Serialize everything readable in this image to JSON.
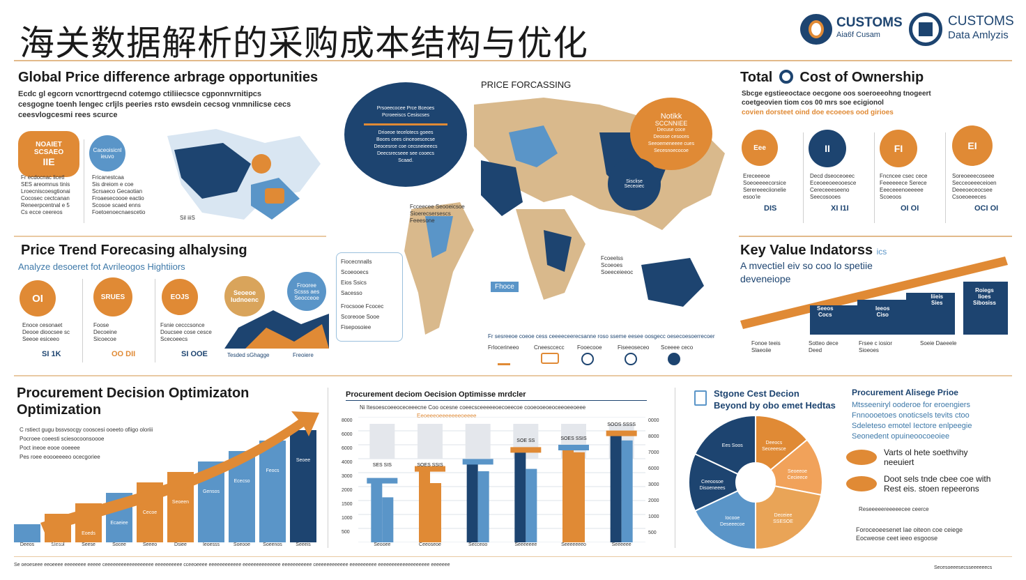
{
  "header": {
    "title": "海关数据解析的采购成本结构与优化",
    "logo1": {
      "line1": "CUSTOMS",
      "line2": "Aia6f Cusam"
    },
    "logo2": {
      "line1": "CUSTOMS",
      "line2": "Data Amlyzis"
    }
  },
  "global": {
    "title": "Global Price difference arbrage opportunities",
    "lines": [
      "Ecdc gl egcorn vcnorttrgecnd cotemgo ctiliiecsce cgponnvrnitipcs",
      "cesgogne toenh lengec crljls peeries rsto ewsdein cecsog vnmnilicse cecs",
      "ceesvlogcesmi rees scurce"
    ],
    "card1": {
      "line1": "NOAIET",
      "line2": "SCSAEO",
      "line3": "IIE"
    },
    "card2": {
      "line1": "Caceoisicnl",
      "line2": "ieuvo"
    },
    "col1": [
      "Fr ecdocnac licetl",
      "SES areomnus tinis",
      "Lroecniscoesgtionai",
      "Cocosec cectcanan",
      "Reneerpcentnal e 5",
      "Cs ecce ceereos"
    ],
    "col2": [
      "Fricanestcaa",
      "Sis dreiom e coe",
      "Scrsaeco Gecaotian",
      "Froaesecoooe eactio",
      "Scosoe scaed enns",
      "Foetoenoecnaescetio"
    ],
    "map_label": "Sil iiiS"
  },
  "trend": {
    "title": "Price Trend  Forecasing alhalysing",
    "subtitle": "Analyze desoeret fot Avrileogos Hightiiors",
    "items": [
      {
        "icon": "OI",
        "l1": "Enoce cesonaet",
        "l2": "Deooe dioocsee sc",
        "l3": "Seeoe esiceeo",
        "value": "SI 1K"
      },
      {
        "icon": "SRUES",
        "l1": "Foose",
        "l2": "Decoeine",
        "l3": "Sicoecoe",
        "value": "OO DII"
      },
      {
        "icon": "EOJS",
        "l1": "Fsnie cecccsonce",
        "l2": "Doucsee cose cesce",
        "l3": "Scecoeecs",
        "value": "SI OOE"
      }
    ],
    "tag1": {
      "l1": "Seoeoe",
      "l2": "Iudnoenc"
    },
    "tag2": {
      "l1": "Frooree",
      "l2": "Scsss aes",
      "l3": "Seocceoe"
    },
    "caption1": "Tesded sGhagge",
    "caption2": "Freoiere"
  },
  "forecast": {
    "title": "PRICE FORCASSING",
    "bubble": {
      "l1": "Prsoeecocee Prce Bceoes",
      "l2": "Pcroeeiscs Cesiscses",
      "l3": "Drioeoe tecelotecs goees",
      "l4": "Boces cees cinceoescecse",
      "l5": "Deocesrce coe cecsneieeecs",
      "l6": "Deecsrecseee see cooecs",
      "l7": "Scaad."
    },
    "notice": {
      "l1": "Notikk",
      "l2": "SCCNNIEE",
      "l3": "Decuse coce",
      "l4": "Deosse cesoces",
      "l5": "Seeoemeneeee cues",
      "l6": "Secesnoecocoe"
    },
    "asia": {
      "l1": "Sisclise",
      "l2": "Seceoiec"
    },
    "panel": [
      "Fiocecnnalls",
      "Scoeooecs",
      "Eios Ssics",
      "Sacesso",
      "Frocsooe Fcocec",
      "Scoreooe Sooe",
      "Fiseposoiee"
    ],
    "legend": "Fr sesreeoe coeoe cess ceeeeceerecsanne roso sseme eesee oosgecc oesecoesoerrecoer",
    "footer_items": [
      "Frlocerineeo",
      "Cneesccecc",
      "Fooecooe",
      "Fiseeoseceo",
      "Sceeee ceco"
    ],
    "small1": [
      "Fcceecee Seooeicsoe",
      "Sioerecsersescs",
      "Feeesone"
    ],
    "small2": [
      "Fcoeelss",
      "Scoeoes",
      "Soeeceieeoc"
    ],
    "small3": "Fhoce"
  },
  "tco": {
    "title": "Total",
    "title2": "Cost of Ownership",
    "lines": [
      "Sbcge egstieeoctace oecgone oos soeroeeohng tnogeert",
      "coetgeovien tiom cos 00 mrs soe ecigionol"
    ],
    "highlight": "covien dorsteet oind doe ecoeoes ood girioes",
    "items": [
      {
        "icon": "Eee",
        "l1": "Ereceeeoe",
        "l2": "Soeoeeeecorsice",
        "l3": "Serereeeciionelie",
        "l4": "esoo'ie",
        "value": "DIS"
      },
      {
        "icon": "II",
        "l1": "Decd dseoceoeec",
        "l2": "Eceoeeoeeooesce",
        "l3": "Cereceeeseeno",
        "l4": "Seecosooes",
        "value": "XI I1I"
      },
      {
        "icon": "FI",
        "l1": "Fncncee csec cece",
        "l2": "Feeeeeece Serece",
        "l3": "Eeeceeenoeeeee",
        "l4": "Scoeoos",
        "value": "OI OI"
      },
      {
        "icon": "EI",
        "l1": "Soreoeeecoseee",
        "l2": "Secceoeeeceioen",
        "l3": "Deeeoeceocsee",
        "l4": "Csoeoeeeces",
        "value": "OCI OI"
      }
    ]
  },
  "kvi": {
    "title": "Key Value Indatorss",
    "title_tag": "ics",
    "subtitle1": "A mvectiel eiv so coo lo spetiie",
    "subtitle2": "deveneiope",
    "boxes": [
      {
        "l1": "Seeos",
        "l2": "Cocs"
      },
      {
        "l1": "Ieeos",
        "l2": "Ciso"
      },
      {
        "l1": "Soesen",
        "l2": "Iiieis",
        "l3": "Sies"
      },
      {
        "l1": "Roiegs",
        "l2": "Iioes",
        "l3": "Sibosiss"
      }
    ],
    "labels": [
      {
        "l1": "Fonoe teeis",
        "l2": "Slaeoiie"
      },
      {
        "l1": "Sotteo dece",
        "l2": "Deed"
      },
      {
        "l1": "Frsee c iosior",
        "l2": "Sioeoes"
      },
      {
        "l1": "Soeie Daeeele",
        "l2": ""
      }
    ]
  },
  "procure": {
    "title1": "Procurement Decision Optimizaton",
    "title2": "Optimization",
    "bullets": [
      "C rstiect gugu bssvsocgy cooscesi ooeeto ofiigo oloriii",
      "Pocroee coeesti sciesocoonsoooe",
      "Poct ineoe eooe ooeeee",
      "Pes roee eoooeeeeo ocecgoriee"
    ],
    "bars": [
      {
        "top": "",
        "label": "Deeos"
      },
      {
        "top": "Lsse",
        "label": "Siesol"
      },
      {
        "top": "Eoeds",
        "label": "Seese"
      },
      {
        "top": "Ecaeiee",
        "label": "Socee"
      },
      {
        "top": "Cecoe",
        "label": "Seeeo"
      },
      {
        "top": "Seoeen",
        "label": "Dsiee"
      },
      {
        "top": "Gensos",
        "label": "Ieoesss"
      },
      {
        "top": "Ececso",
        "label": "Soeooe"
      },
      {
        "top": "Feocs",
        "label": "Soeenos"
      },
      {
        "top": "Seoee",
        "label": "Seeeis"
      }
    ]
  },
  "matrix": {
    "title": "Procurement deciom Oecision Optimisse mrdcler",
    "legend": "Ni  Itesoescoeeoceceeecne  Coo ocesne coeecsceeeeeoecoeecoe  cooeooeoeoceeoeeoeee",
    "sub_legend": "Eeoeeeoeeeeeeeoeeee",
    "y_labels": [
      "8000",
      "6000",
      "6000",
      "4000",
      "3000",
      "2000",
      "1500",
      "1000",
      "500"
    ],
    "r_labels": [
      "0000",
      "8000",
      "7000",
      "6000",
      "3000",
      "2000",
      "1000",
      "500"
    ],
    "chart_data": {
      "type": "bar",
      "categories": [
        "Seooee",
        "Ceeoseoe",
        "Secceoo",
        "Seeeeeee",
        "Seeeeeeeo",
        "Seeeeee"
      ],
      "series": [
        {
          "values": [
            5.2,
            6.2,
            6.8,
            7.8,
            8.0,
            9.2
          ]
        },
        {
          "values": [
            3.8,
            5.0,
            6.0,
            6.2,
            7.6,
            8.6
          ]
        }
      ],
      "ylim": [
        0,
        10
      ],
      "top_labels": [
        "",
        "",
        "",
        "SOE SS",
        "SOES SSIS",
        "SOOS SSSS"
      ],
      "mid_labels": [
        "SES SIS",
        "SOES SSIS",
        "",
        "",
        "",
        ""
      ]
    }
  },
  "strategy": {
    "title1": "Stgone Cest Decion",
    "title2": "Beyond by obo emet Hedtas",
    "pie": {
      "chart_data": {
        "type": "pie",
        "slices": [
          {
            "label": "Deeocs Seceeesce",
            "value": 14,
            "color": "#e08a35"
          },
          {
            "label": "Seoeeoe Cecieece",
            "value": 14,
            "color": "#f1a25a"
          },
          {
            "label": "Deceiee SSESOE",
            "value": 22,
            "color": "#e9a457"
          },
          {
            "label": "Iocooe Deseeecoe",
            "value": 18,
            "color": "#5a95c8"
          },
          {
            "label": "Ceeoosoe Disoeneees",
            "value": 14,
            "color": "#1d4470"
          },
          {
            "label": "Ees Soos",
            "value": 18,
            "color": "#1d4470"
          }
        ]
      }
    },
    "right_title": "Procurement Alisege Prioe",
    "right_lines": [
      "Mtsseeniryl ooderoe for eroengiers",
      "Fnnoooetoes onoticsels tevits ctoo",
      "Sdeleteso emotel Iectore enlpeegie",
      "Seonedent opuineoocoeoiee"
    ],
    "bullet1": {
      "l1": "Varts ol hete soethvihy",
      "l2": "neeuiert"
    },
    "bullet2": {
      "l1": "Doot sels tnde cbee coe with",
      "l2": "Rest eis. stoen repeerons"
    },
    "note": "Reseeeeereeeeecee ceerce",
    "footer1": "Foroceoeesenet Iae oiteon coe ceiege",
    "footer2": "Eocweose ceet ieeo esgoose"
  },
  "footer": {
    "left": "Se oeoeseee eeoeeee eeeeeeee eeeee ceeeeeeeeeeeeeeeeee eeeeeeeeee cceeoeeee eeeeeeeeeeee eeeeeeeeeeeeee eeeeeeeeeee ceeeeeeeeeeee eeeeeeeeee eeeeeeeeeeeeeeeeeee eeeeeee",
    "right": "Secesoeeesecsseeeeeecs"
  },
  "colors": {
    "navy": "#1d4470",
    "orange": "#e08a35",
    "light_blue": "#5a95c8",
    "tan": "#d9b98c"
  }
}
